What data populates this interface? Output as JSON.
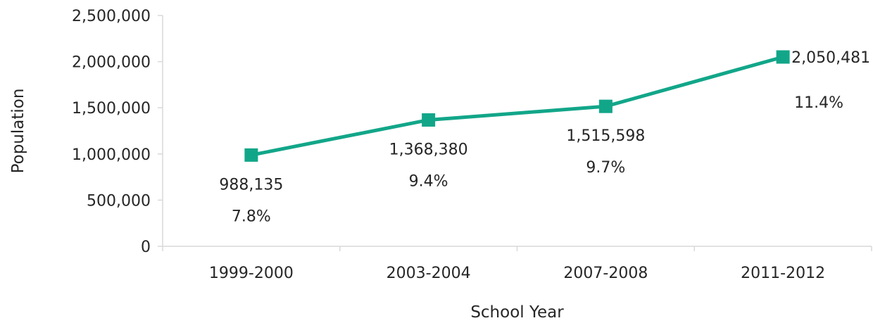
{
  "chart_data": {
    "type": "line",
    "categories": [
      "1999-2000",
      "2003-2004",
      "2007-2008",
      "2011-2012"
    ],
    "series": [
      {
        "values": [
          988135,
          1368380,
          1515598,
          2050481
        ],
        "data_labels": [
          "988,135",
          "1,368,380",
          "1,515,598",
          "2,050,481"
        ],
        "percent_labels": [
          "7.8%",
          "9.4%",
          "9.7%",
          "11.4%"
        ]
      }
    ],
    "xlabel": "School Year",
    "ylabel": "Population",
    "ylim": [
      0,
      2500000
    ],
    "yticks": [
      0,
      500000,
      1000000,
      1500000,
      2000000,
      2500000
    ],
    "ytick_labels": [
      "0",
      "500,000",
      "1,000,000",
      "1,500,000",
      "2,000,000",
      "2,500,000"
    ],
    "grid": false,
    "legend": "none",
    "colors": {
      "series": "#12A689",
      "axis": "#D9D9D9",
      "text": "#262626"
    }
  }
}
